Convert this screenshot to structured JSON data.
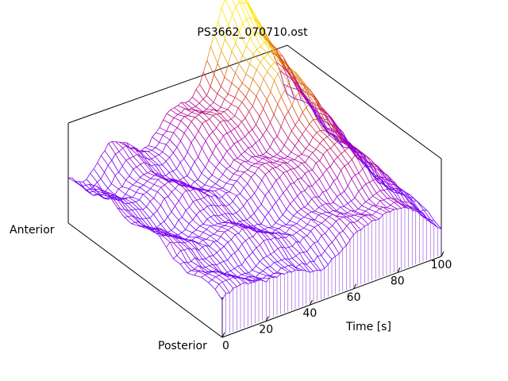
{
  "chart_data": {
    "type": "surface",
    "title": "PS3662_070710.ost",
    "xlabel": "Time [s]",
    "ylabel_front": "Posterior",
    "ylabel_back": "Anterior",
    "x_ticks": [
      "0",
      "20",
      "40",
      "60",
      "80",
      "100"
    ],
    "xlim": [
      0,
      100
    ],
    "grid": false,
    "legend": "none",
    "colormap": [
      "#6a00ff",
      "#8a00e0",
      "#b4009c",
      "#d43f1e",
      "#e8a21a",
      "#ffe800"
    ],
    "surface": {
      "description_of_shape": "Low ridge near the front edge; surface rises toward the back and toward later time (60–90 s), reaching a maximum near 70–85 s at the anterior side.",
      "peak_region": {
        "time_s": [
          65,
          90
        ],
        "side": "Anterior"
      }
    }
  }
}
